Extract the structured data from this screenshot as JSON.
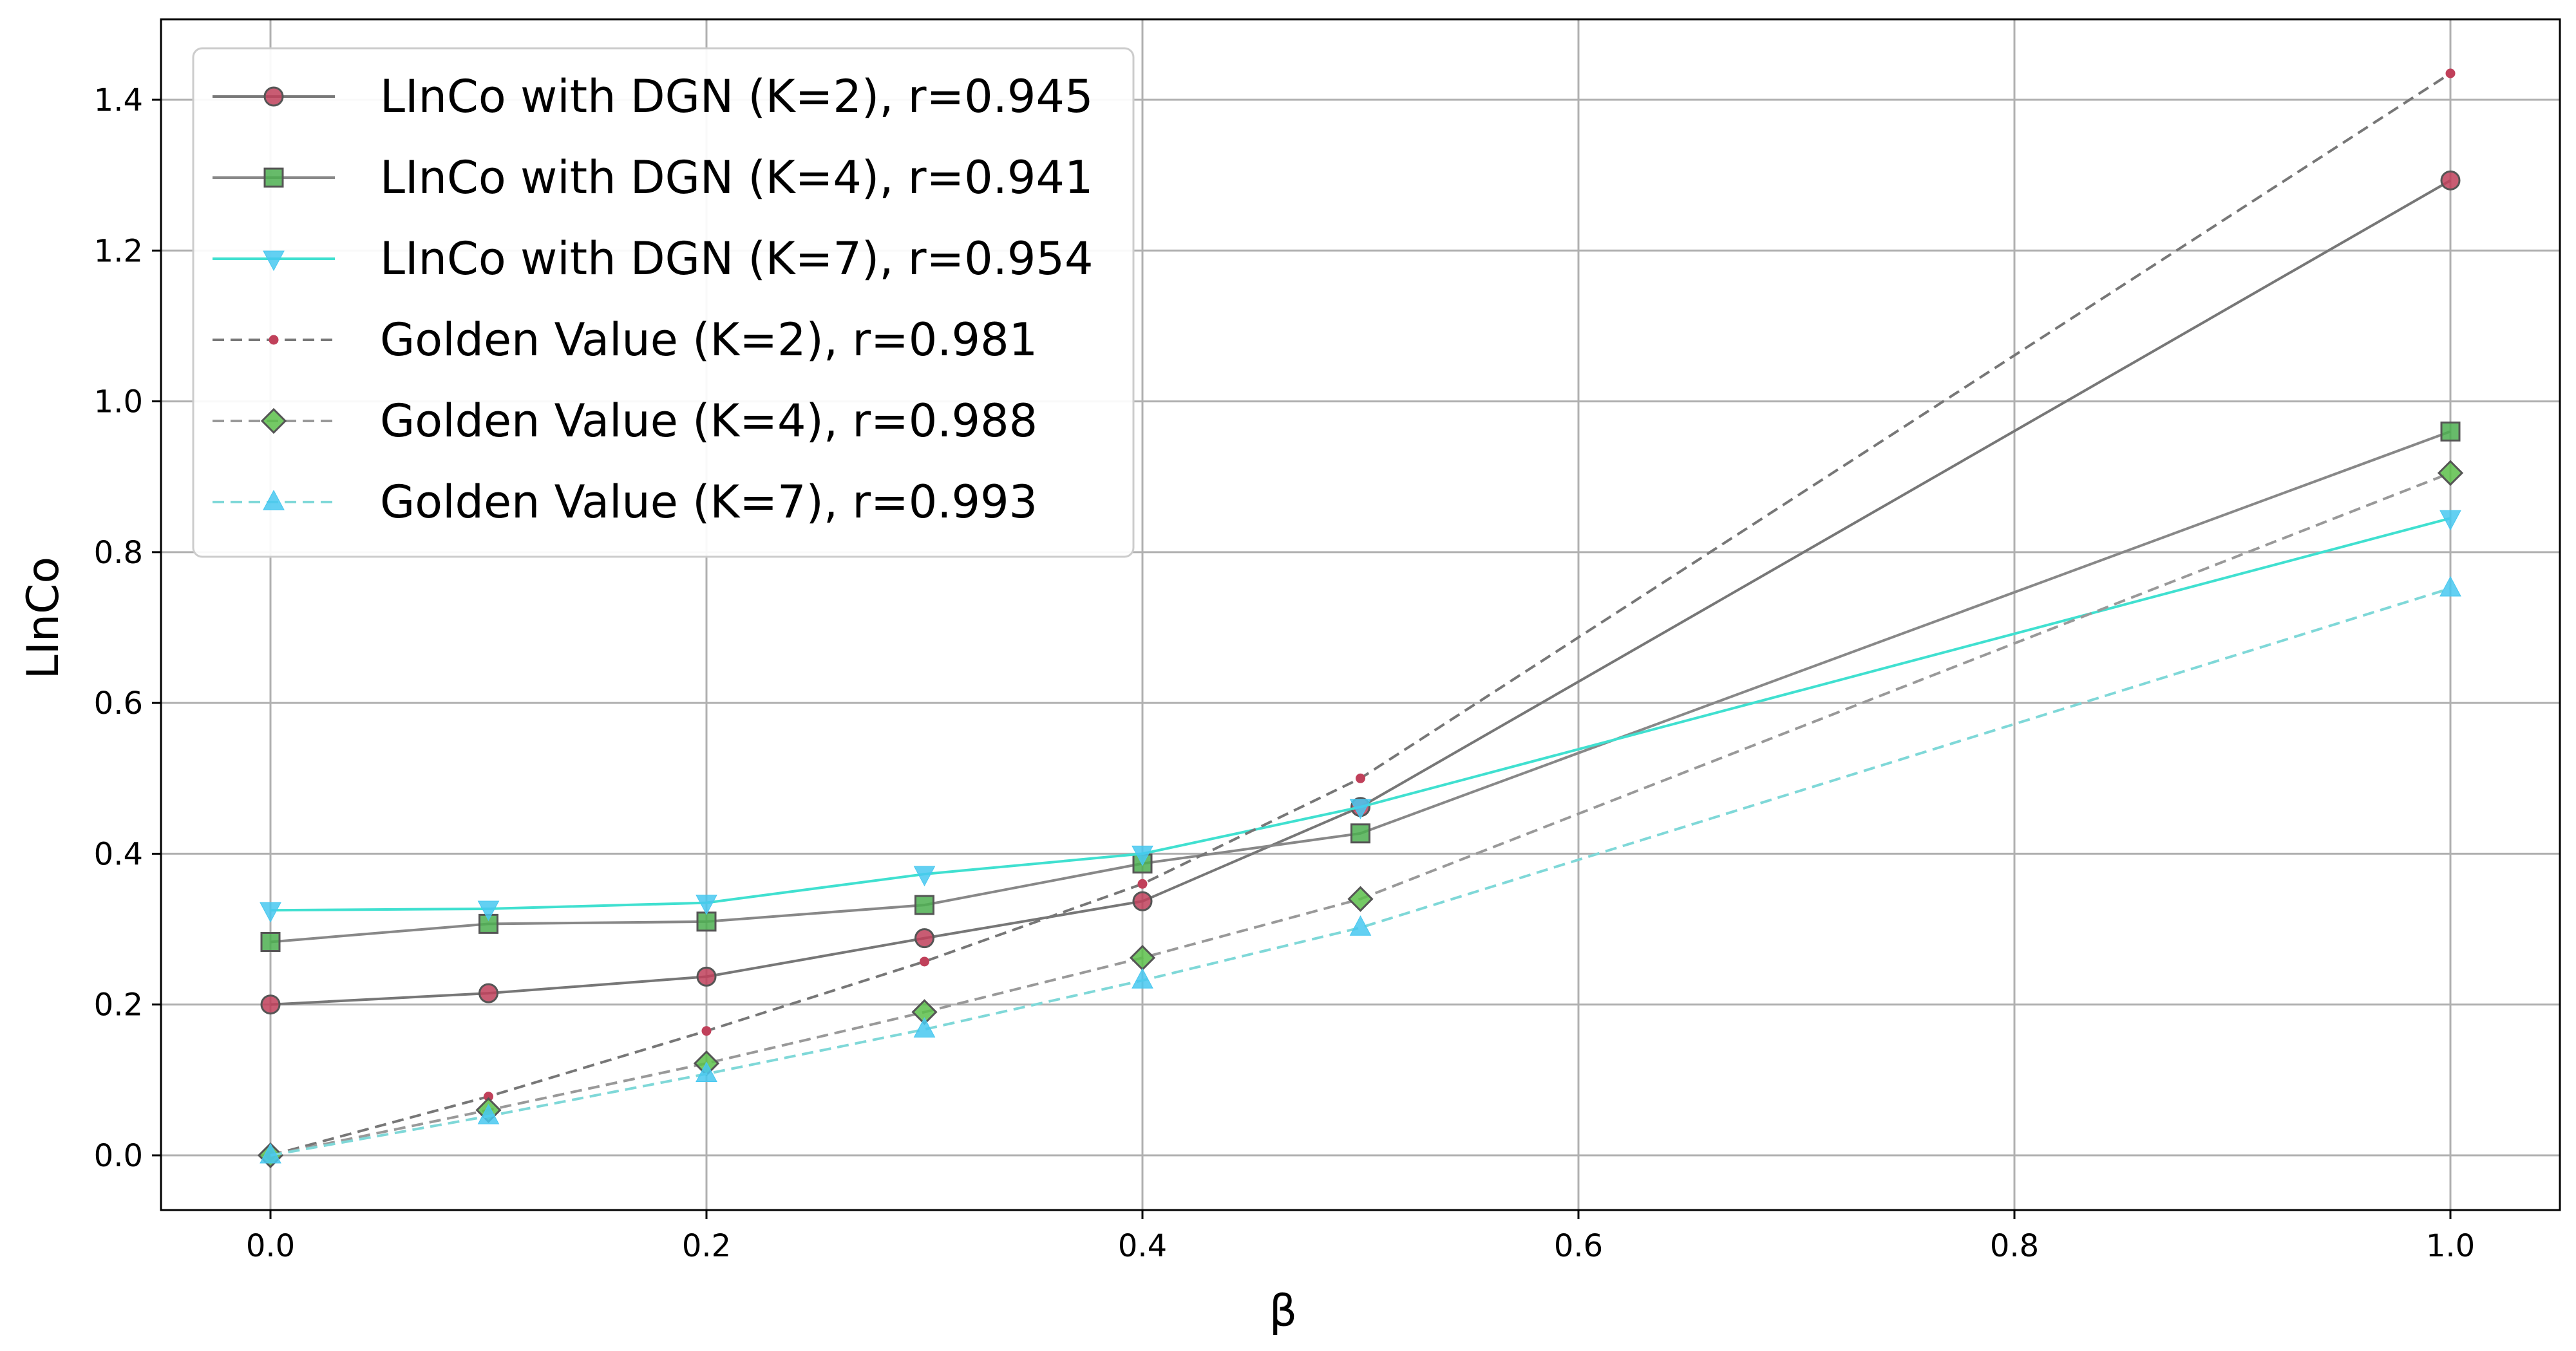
{
  "chart_data": {
    "type": "line",
    "title": "",
    "xlabel": "β",
    "ylabel": "LInCo",
    "xlim": [
      -0.05,
      1.05
    ],
    "ylim": [
      -0.07,
      1.52
    ],
    "xticks": [
      0.0,
      0.2,
      0.4,
      0.6,
      0.8,
      1.0
    ],
    "xtick_labels": [
      "0.0",
      "0.2",
      "0.4",
      "0.6",
      "0.8",
      "1.0"
    ],
    "yticks": [
      0.0,
      0.2,
      0.4,
      0.6,
      0.8,
      1.0,
      1.2,
      1.4
    ],
    "ytick_labels": [
      "0.0",
      "0.2",
      "0.4",
      "0.6",
      "0.8",
      "1.0",
      "1.2",
      "1.4"
    ],
    "grid": true,
    "legend_position": "top-left",
    "x": [
      0.0,
      0.1,
      0.2,
      0.3,
      0.4,
      0.5,
      1.0
    ],
    "series": [
      {
        "name": "LInCo with DGN (K=2), r=0.945",
        "values": [
          0.2,
          0.215,
          0.237,
          0.288,
          0.337,
          0.462,
          1.293
        ],
        "line_color": "#777777",
        "marker_color": "#c0405a",
        "marker": "circle",
        "dash": "solid"
      },
      {
        "name": "LInCo with DGN (K=4), r=0.941",
        "values": [
          0.283,
          0.307,
          0.31,
          0.332,
          0.387,
          0.427,
          0.96
        ],
        "line_color": "#888888",
        "marker_color": "#4caf50",
        "marker": "square",
        "dash": "solid"
      },
      {
        "name": "LInCo with DGN (K=7), r=0.954",
        "values": [
          0.325,
          0.327,
          0.335,
          0.373,
          0.4,
          0.462,
          0.845
        ],
        "line_color": "#40e0d0",
        "marker_color": "#48c8f0",
        "marker": "triangle-down",
        "dash": "solid"
      },
      {
        "name": "Golden Value (K=2), r=0.981",
        "values": [
          0.0,
          0.078,
          0.165,
          0.257,
          0.36,
          0.5,
          1.435
        ],
        "line_color": "#777777",
        "marker_color": "#c0405a",
        "marker": "dot",
        "dash": "dashed"
      },
      {
        "name": "Golden Value (K=4), r=0.988",
        "values": [
          0.0,
          0.06,
          0.122,
          0.19,
          0.262,
          0.34,
          0.905
        ],
        "line_color": "#999999",
        "marker_color": "#5cbf4a",
        "marker": "diamond",
        "dash": "dashed"
      },
      {
        "name": "Golden Value (K=7), r=0.993",
        "values": [
          0.0,
          0.052,
          0.108,
          0.167,
          0.232,
          0.302,
          0.752
        ],
        "line_color": "#7fd8d8",
        "marker_color": "#48c8f0",
        "marker": "triangle-up",
        "dash": "dashed"
      }
    ]
  }
}
